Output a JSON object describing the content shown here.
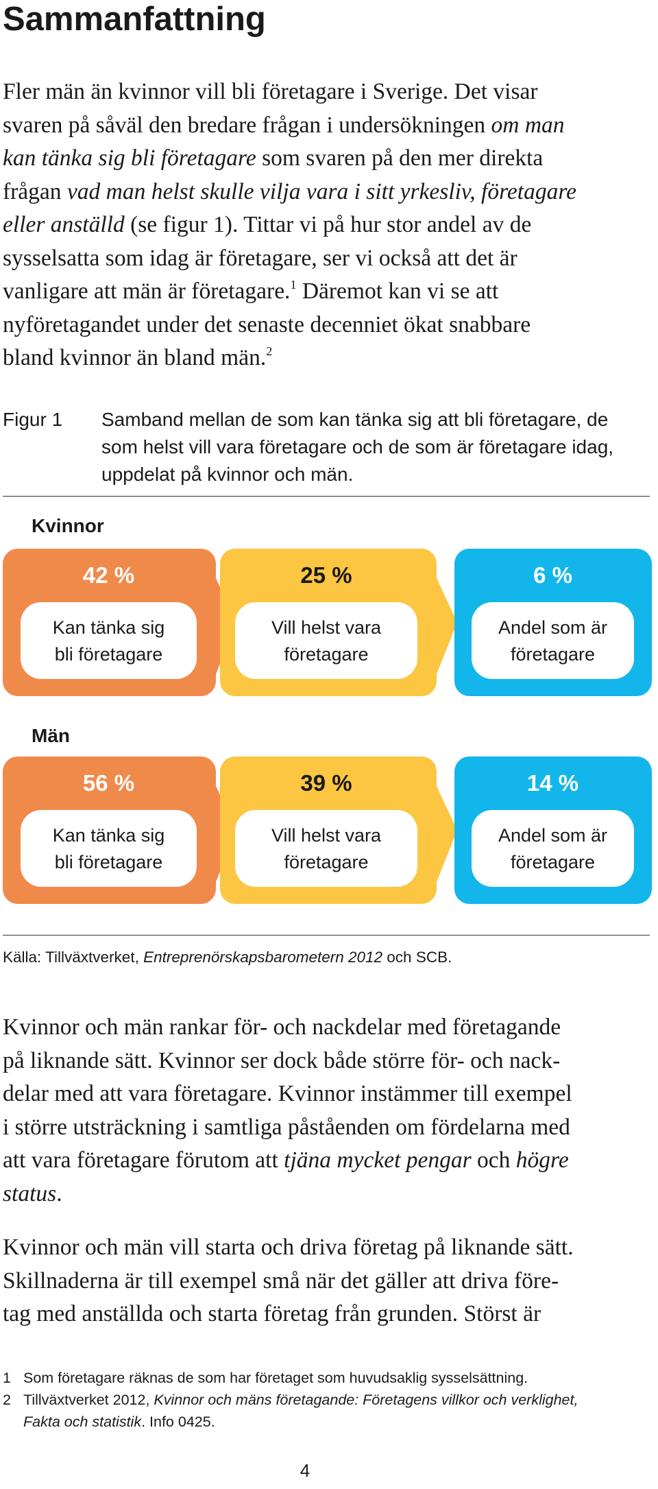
{
  "title": "Sammanfattning",
  "intro": {
    "l1": "Fler män än kvinnor vill bli företagare i Sverige. Det visar",
    "l2a": "svaren på såväl den bredare frågan i undersökningen ",
    "l2b": "om man",
    "l3a": "kan tänka sig bli företagare",
    "l3b": " som svaren på den mer direkta",
    "l4a": "frågan ",
    "l4b": "vad man helst skulle vilja vara i sitt yrkesliv, företagare",
    "l5a": "eller anställd",
    "l5b": " (se figur 1). Tittar vi på hur stor andel av de",
    "l6": "sysselsatta som idag är företagare, ser vi också att det är",
    "l7a": "vanligare att män är företagare.",
    "l7sup": "1",
    "l7b": " Däremot kan vi se att",
    "l8": "nyföretagandet under det senaste decenniet ökat snabbare",
    "l9a": "bland kvinnor än bland män.",
    "l9sup": "2"
  },
  "figure": {
    "label": "Figur 1",
    "caption": {
      "l1": "Samband mellan de som kan tänka sig att bli företagare, de",
      "l2": "som helst vill vara företagare och de som är företagare idag,",
      "l3": "uppdelat på kvinnor och män."
    },
    "colors": {
      "orange": "#F08A4B",
      "yellow": "#FCC642",
      "blue": "#12B6EA",
      "box": "#ffffff"
    },
    "groups": [
      {
        "label": "Kvinnor",
        "stages": [
          {
            "pct": "42 %",
            "line1": "Kan tänka sig",
            "line2": "bli företagare"
          },
          {
            "pct": "25 %",
            "line1": "Vill helst vara",
            "line2": "företagare"
          },
          {
            "pct": "6 %",
            "line1": "Andel som är",
            "line2": "företagare"
          }
        ]
      },
      {
        "label": "Män",
        "stages": [
          {
            "pct": "56 %",
            "line1": "Kan tänka sig",
            "line2": "bli företagare"
          },
          {
            "pct": "39 %",
            "line1": "Vill helst vara",
            "line2": "företagare"
          },
          {
            "pct": "14 %",
            "line1": "Andel som är",
            "line2": "företagare"
          }
        ]
      }
    ],
    "source": {
      "a": "Källa: Tillväxtverket, ",
      "b": "Entreprenörskapsbarometern 2012",
      "c": " och SCB."
    }
  },
  "para2": {
    "l1": "Kvinnor och män rankar för- och nackdelar med företagande",
    "l2": "på liknande sätt. Kvinnor ser dock både större för- och nack-",
    "l3": "delar med att vara företagare. Kvinnor instämmer till exempel",
    "l4": "i större utsträckning i samtliga påståenden om fördelarna med",
    "l5a": "att vara företagare förutom att ",
    "l5b": "tjäna mycket pengar",
    "l5c": " och ",
    "l5d": "högre",
    "l6a": "status",
    "l6b": "."
  },
  "para3": {
    "l1": "Kvinnor och män vill starta och driva företag på liknande sätt.",
    "l2": "Skillnaderna är till exempel små när det gäller att driva före-",
    "l3": "tag med anställda och starta företag från grunden. Störst är"
  },
  "footnotes": [
    {
      "num": "1",
      "l1": "Som företagare räknas de som har företaget som huvudsaklig sysselsättning."
    },
    {
      "num": "2",
      "l1a": "Tillväxtverket 2012, ",
      "l1b": "Kvinnor och mäns företagande: Företagens villkor och verklighet,",
      "l2a": "Fakta och statistik",
      "l2b": ". Info 0425."
    }
  ],
  "page_number": "4"
}
